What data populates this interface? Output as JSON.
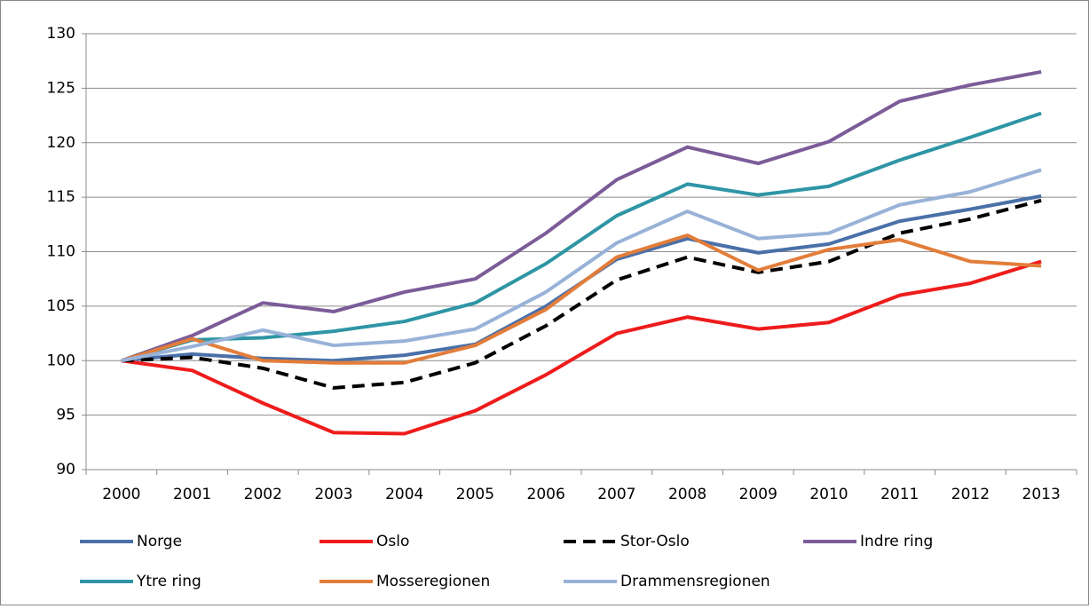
{
  "chart_data": {
    "type": "line",
    "categories": [
      "2000",
      "2001",
      "2002",
      "2003",
      "2004",
      "2005",
      "2006",
      "2007",
      "2008",
      "2009",
      "2010",
      "2011",
      "2012",
      "2013"
    ],
    "ylim": [
      90,
      130
    ],
    "yticks": [
      90,
      95,
      100,
      105,
      110,
      115,
      120,
      125,
      130
    ],
    "grid": true,
    "legend": "bottom",
    "series": [
      {
        "name": "Norge",
        "color": "#4a70a8",
        "values": [
          100,
          100.6,
          100.2,
          100.0,
          100.5,
          101.5,
          105.0,
          109.3,
          111.2,
          109.9,
          110.7,
          112.8,
          113.9,
          115.1
        ]
      },
      {
        "name": "Oslo",
        "color": "#ee1c1c",
        "values": [
          100,
          99.1,
          96.1,
          93.4,
          93.3,
          95.4,
          98.7,
          102.5,
          104.0,
          102.9,
          103.5,
          106.0,
          107.1,
          109.1
        ]
      },
      {
        "name": "Stor-Oslo",
        "color": "#000000",
        "dashed": true,
        "values": [
          100,
          100.3,
          99.3,
          97.5,
          98.0,
          99.8,
          103.2,
          107.4,
          109.5,
          108.1,
          109.1,
          111.7,
          113.0,
          114.7
        ]
      },
      {
        "name": "Indre ring",
        "color": "#7b5c98",
        "values": [
          100,
          102.3,
          105.3,
          104.5,
          106.3,
          107.5,
          111.7,
          116.6,
          119.6,
          118.1,
          120.1,
          123.8,
          125.3,
          126.5
        ]
      },
      {
        "name": "Ytre ring",
        "color": "#2e95a5",
        "values": [
          100,
          101.9,
          102.1,
          102.7,
          103.6,
          105.3,
          108.9,
          113.3,
          116.2,
          115.2,
          116.0,
          118.4,
          120.5,
          122.7
        ]
      },
      {
        "name": "Mosseregionen",
        "color": "#e27d3a",
        "values": [
          100,
          102.0,
          100.0,
          99.8,
          99.8,
          101.4,
          104.7,
          109.5,
          111.5,
          108.3,
          110.2,
          111.1,
          109.1,
          108.7
        ]
      },
      {
        "name": "Drammensregionen",
        "color": "#98b2d8",
        "values": [
          100,
          101.3,
          102.8,
          101.4,
          101.8,
          102.9,
          106.3,
          110.8,
          113.7,
          111.2,
          111.7,
          114.3,
          115.5,
          117.5
        ]
      }
    ]
  }
}
